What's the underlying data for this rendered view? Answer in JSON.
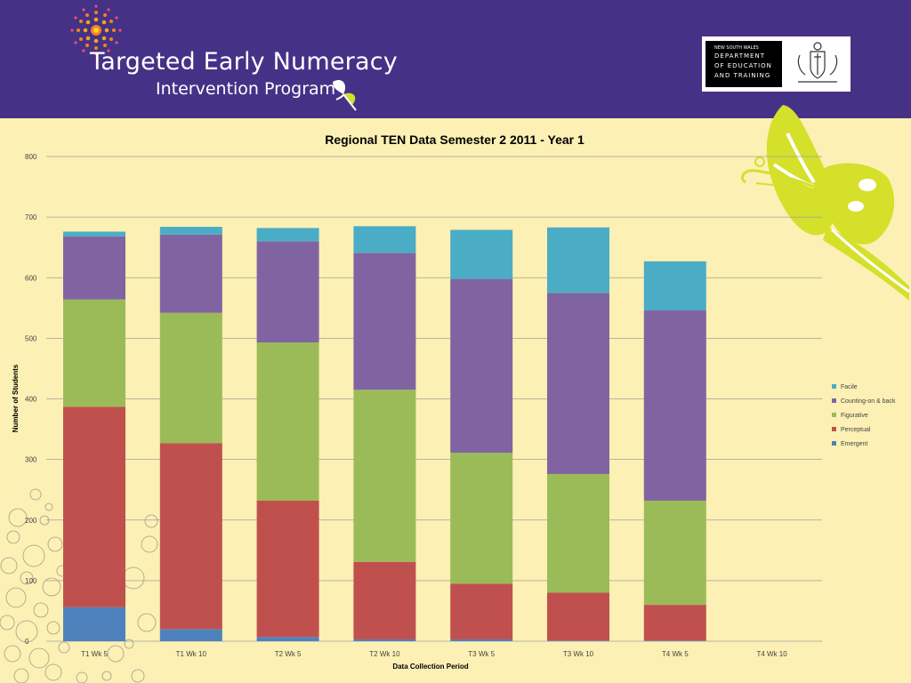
{
  "header": {
    "title_main": "Targeted Early Numeracy",
    "title_sub": "Intervention Program",
    "logo_line1": "NEW SOUTH WALES",
    "logo_line2": "DEPARTMENT",
    "logo_line3": "OF EDUCATION",
    "logo_line4": "AND TRAINING",
    "background_color": "#453287",
    "accent_color": "#d4e02a"
  },
  "chart_data": {
    "type": "bar",
    "stacked": true,
    "title": "Regional TEN Data Semester 2 2011 - Year 1",
    "xlabel": "Data Collection Period",
    "ylabel": "Number of Students",
    "ylim": [
      0,
      800
    ],
    "yticks": [
      0,
      100,
      200,
      300,
      400,
      500,
      600,
      700,
      800
    ],
    "grid": true,
    "legend_position": "right",
    "categories": [
      "T1 Wk 5",
      "T1 Wk 10",
      "T2 Wk 5",
      "T2 Wk 10",
      "T3 Wk 5",
      "T3 Wk 10",
      "T4 Wk 5",
      "T4 Wk 10"
    ],
    "series": [
      {
        "name": "Emergent",
        "color": "#4f81bd",
        "values": [
          56,
          20,
          7,
          3,
          3,
          1,
          1,
          0
        ]
      },
      {
        "name": "Perceptual",
        "color": "#c0504d",
        "values": [
          331,
          307,
          225,
          128,
          92,
          79,
          59,
          0
        ]
      },
      {
        "name": "Figurative",
        "color": "#9bbb59",
        "values": [
          177,
          215,
          261,
          284,
          216,
          196,
          172,
          0
        ]
      },
      {
        "name": "Counting-on & back",
        "color": "#8064a2",
        "values": [
          104,
          129,
          167,
          226,
          287,
          299,
          314,
          0
        ]
      },
      {
        "name": "Facile",
        "color": "#4bacc6",
        "values": [
          8,
          13,
          22,
          44,
          81,
          108,
          81,
          0
        ]
      }
    ]
  }
}
